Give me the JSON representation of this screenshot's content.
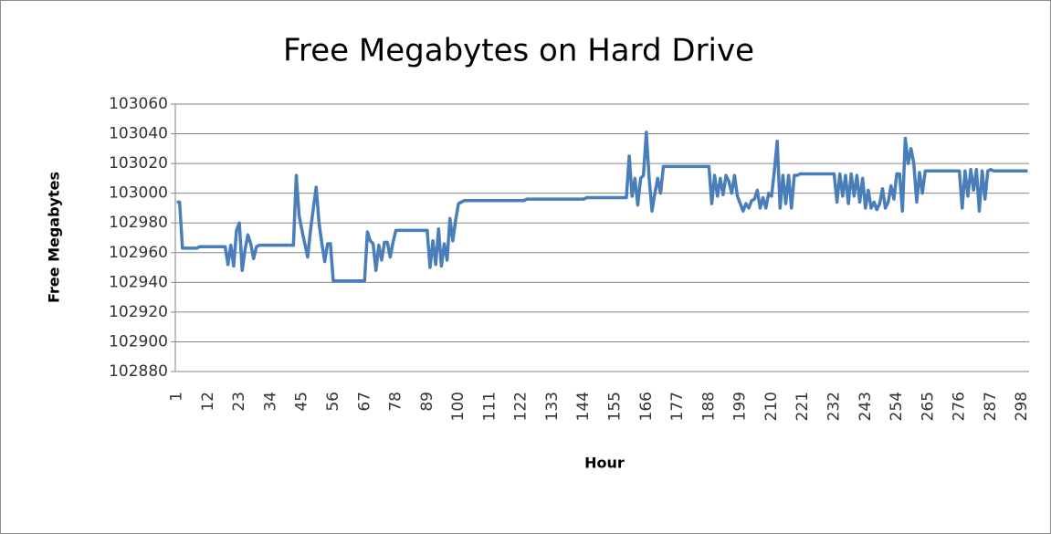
{
  "chart_data": {
    "type": "line",
    "title": "Free Megabytes on Hard Drive",
    "x_label": "Hour",
    "y_label": "Free Megabytes",
    "categories": [
      "1",
      null,
      null,
      null,
      null,
      null,
      null,
      null,
      null,
      null,
      null,
      "12",
      null,
      null,
      null,
      null,
      null,
      null,
      null,
      null,
      null,
      null,
      "23",
      null,
      null,
      null,
      null,
      null,
      null,
      null,
      null,
      null,
      null,
      "34",
      null,
      null,
      null,
      null,
      null,
      null,
      null,
      null,
      null,
      null,
      "45",
      null,
      null,
      null,
      null,
      null,
      null,
      null,
      null,
      null,
      null,
      "56",
      null,
      null,
      null,
      null,
      null,
      null,
      null,
      null,
      null,
      null,
      "67",
      null,
      null,
      null,
      null,
      null,
      null,
      null,
      null,
      null,
      null,
      "78",
      null,
      null,
      null,
      null,
      null,
      null,
      null,
      null,
      null,
      null,
      "89",
      null,
      null,
      null,
      null,
      null,
      null,
      null,
      null,
      null,
      null,
      "100",
      null,
      null,
      null,
      null,
      null,
      null,
      null,
      null,
      null,
      null,
      "111",
      null,
      null,
      null,
      null,
      null,
      null,
      null,
      null,
      null,
      null,
      "122",
      null,
      null,
      null,
      null,
      null,
      null,
      null,
      null,
      null,
      null,
      "133",
      null,
      null,
      null,
      null,
      null,
      null,
      null,
      null,
      null,
      null,
      "144",
      null,
      null,
      null,
      null,
      null,
      null,
      null,
      null,
      null,
      null,
      "155",
      null,
      null,
      null,
      null,
      null,
      null,
      null,
      null,
      null,
      null,
      "166",
      null,
      null,
      null,
      null,
      null,
      null,
      null,
      null,
      null,
      null,
      "177",
      null,
      null,
      null,
      null,
      null,
      null,
      null,
      null,
      null,
      null,
      "188",
      null,
      null,
      null,
      null,
      null,
      null,
      null,
      null,
      null,
      null,
      "199",
      null,
      null,
      null,
      null,
      null,
      null,
      null,
      null,
      null,
      null,
      "210",
      null,
      null,
      null,
      null,
      null,
      null,
      null,
      null,
      null,
      null,
      "221",
      null,
      null,
      null,
      null,
      null,
      null,
      null,
      null,
      null,
      null,
      "232",
      null,
      null,
      null,
      null,
      null,
      null,
      null,
      null,
      null,
      null,
      "243",
      null,
      null,
      null,
      null,
      null,
      null,
      null,
      null,
      null,
      null,
      "254",
      null,
      null,
      null,
      null,
      null,
      null,
      null,
      null,
      null,
      null,
      "265",
      null,
      null,
      null,
      null,
      null,
      null,
      null,
      null,
      null,
      null,
      "276",
      null,
      null,
      null,
      null,
      null,
      null,
      null,
      null,
      null,
      null,
      "287",
      null,
      null,
      null,
      null,
      null,
      null,
      null,
      null,
      null,
      null,
      "298",
      null,
      null
    ],
    "series": [
      {
        "name": "Free Megabytes",
        "color": "#4a7ebb",
        "values": [
          102994,
          102994,
          102963,
          102963,
          102963,
          102963,
          102963,
          102963,
          102964,
          102964,
          102964,
          102964,
          102964,
          102964,
          102964,
          102964,
          102964,
          102964,
          102952,
          102965,
          102951,
          102975,
          102980,
          102948,
          102962,
          102972,
          102966,
          102956,
          102964,
          102965,
          102965,
          102965,
          102965,
          102965,
          102965,
          102965,
          102965,
          102965,
          102965,
          102965,
          102965,
          102965,
          103012,
          102985,
          102975,
          102966,
          102957,
          102975,
          102990,
          103004,
          102980,
          102966,
          102954,
          102966,
          102966,
          102941,
          102941,
          102941,
          102941,
          102941,
          102941,
          102941,
          102941,
          102941,
          102941,
          102941,
          102941,
          102974,
          102968,
          102966,
          102948,
          102965,
          102955,
          102967,
          102967,
          102957,
          102967,
          102975,
          102975,
          102975,
          102975,
          102975,
          102975,
          102975,
          102975,
          102975,
          102975,
          102975,
          102975,
          102950,
          102968,
          102952,
          102976,
          102951,
          102966,
          102955,
          102983,
          102968,
          102982,
          102993,
          102994,
          102995,
          102995,
          102995,
          102995,
          102995,
          102995,
          102995,
          102995,
          102995,
          102995,
          102995,
          102995,
          102995,
          102995,
          102995,
          102995,
          102995,
          102995,
          102995,
          102995,
          102995,
          102995,
          102996,
          102996,
          102996,
          102996,
          102996,
          102996,
          102996,
          102996,
          102996,
          102996,
          102996,
          102996,
          102996,
          102996,
          102996,
          102996,
          102996,
          102996,
          102996,
          102996,
          102996,
          102997,
          102997,
          102997,
          102997,
          102997,
          102997,
          102997,
          102997,
          102997,
          102997,
          102997,
          102997,
          102997,
          102997,
          102997,
          103025,
          102998,
          103010,
          102992,
          103010,
          103012,
          103041,
          103010,
          102988,
          103000,
          103010,
          103000,
          103018,
          103018,
          103018,
          103018,
          103018,
          103018,
          103018,
          103018,
          103018,
          103018,
          103018,
          103018,
          103018,
          103018,
          103018,
          103018,
          103018,
          102993,
          103012,
          102998,
          103010,
          102999,
          103012,
          103008,
          103000,
          103012,
          102998,
          102993,
          102988,
          102993,
          102990,
          102995,
          102996,
          103002,
          102990,
          102997,
          102990,
          103000,
          102998,
          103015,
          103035,
          102990,
          103012,
          102993,
          103012,
          102990,
          103012,
          103012,
          103013,
          103013,
          103013,
          103013,
          103013,
          103013,
          103013,
          103013,
          103013,
          103013,
          103013,
          103013,
          103013,
          102994,
          103013,
          102998,
          103012,
          102993,
          103013,
          102998,
          103012,
          102994,
          103010,
          102990,
          103002,
          102990,
          102994,
          102989,
          102993,
          103003,
          102990,
          102994,
          103005,
          102996,
          103013,
          103013,
          102988,
          103037,
          103020,
          103030,
          103020,
          102994,
          103014,
          103000,
          103015,
          103015,
          103015,
          103015,
          103015,
          103015,
          103015,
          103015,
          103015,
          103015,
          103015,
          103015,
          103015,
          102990,
          103015,
          102998,
          103016,
          103002,
          103016,
          102988,
          103015,
          102996,
          103015,
          103016,
          103015,
          103015,
          103015,
          103015,
          103015,
          103015,
          103015,
          103015,
          103015,
          103015,
          103015,
          103015,
          103015
        ]
      }
    ],
    "ylim": [
      102880,
      103060
    ],
    "yticks": [
      102880,
      102900,
      102920,
      102940,
      102960,
      102980,
      103000,
      103020,
      103040,
      103060
    ],
    "grid": true
  }
}
